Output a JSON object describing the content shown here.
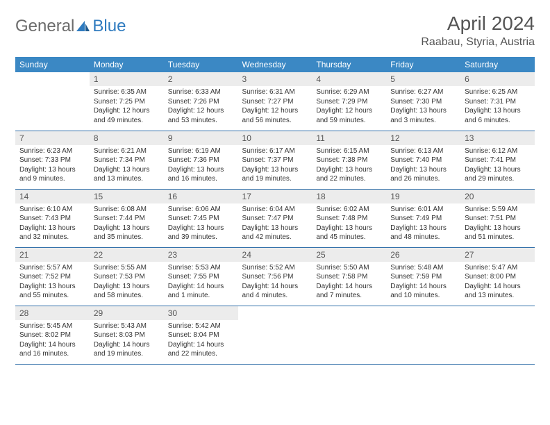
{
  "logo": {
    "text_gray": "General",
    "text_blue": "Blue"
  },
  "title": "April 2024",
  "location": "Raabau, Styria, Austria",
  "colors": {
    "header_bg": "#3b88c4",
    "header_text": "#ffffff",
    "daynum_bg": "#ececec",
    "row_border": "#2f6ea8",
    "logo_gray": "#6b6b6b",
    "logo_blue": "#2f7bbf"
  },
  "weekdays": [
    "Sunday",
    "Monday",
    "Tuesday",
    "Wednesday",
    "Thursday",
    "Friday",
    "Saturday"
  ],
  "weeks": [
    [
      null,
      {
        "n": "1",
        "sr": "Sunrise: 6:35 AM",
        "ss": "Sunset: 7:25 PM",
        "d1": "Daylight: 12 hours",
        "d2": "and 49 minutes."
      },
      {
        "n": "2",
        "sr": "Sunrise: 6:33 AM",
        "ss": "Sunset: 7:26 PM",
        "d1": "Daylight: 12 hours",
        "d2": "and 53 minutes."
      },
      {
        "n": "3",
        "sr": "Sunrise: 6:31 AM",
        "ss": "Sunset: 7:27 PM",
        "d1": "Daylight: 12 hours",
        "d2": "and 56 minutes."
      },
      {
        "n": "4",
        "sr": "Sunrise: 6:29 AM",
        "ss": "Sunset: 7:29 PM",
        "d1": "Daylight: 12 hours",
        "d2": "and 59 minutes."
      },
      {
        "n": "5",
        "sr": "Sunrise: 6:27 AM",
        "ss": "Sunset: 7:30 PM",
        "d1": "Daylight: 13 hours",
        "d2": "and 3 minutes."
      },
      {
        "n": "6",
        "sr": "Sunrise: 6:25 AM",
        "ss": "Sunset: 7:31 PM",
        "d1": "Daylight: 13 hours",
        "d2": "and 6 minutes."
      }
    ],
    [
      {
        "n": "7",
        "sr": "Sunrise: 6:23 AM",
        "ss": "Sunset: 7:33 PM",
        "d1": "Daylight: 13 hours",
        "d2": "and 9 minutes."
      },
      {
        "n": "8",
        "sr": "Sunrise: 6:21 AM",
        "ss": "Sunset: 7:34 PM",
        "d1": "Daylight: 13 hours",
        "d2": "and 13 minutes."
      },
      {
        "n": "9",
        "sr": "Sunrise: 6:19 AM",
        "ss": "Sunset: 7:36 PM",
        "d1": "Daylight: 13 hours",
        "d2": "and 16 minutes."
      },
      {
        "n": "10",
        "sr": "Sunrise: 6:17 AM",
        "ss": "Sunset: 7:37 PM",
        "d1": "Daylight: 13 hours",
        "d2": "and 19 minutes."
      },
      {
        "n": "11",
        "sr": "Sunrise: 6:15 AM",
        "ss": "Sunset: 7:38 PM",
        "d1": "Daylight: 13 hours",
        "d2": "and 22 minutes."
      },
      {
        "n": "12",
        "sr": "Sunrise: 6:13 AM",
        "ss": "Sunset: 7:40 PM",
        "d1": "Daylight: 13 hours",
        "d2": "and 26 minutes."
      },
      {
        "n": "13",
        "sr": "Sunrise: 6:12 AM",
        "ss": "Sunset: 7:41 PM",
        "d1": "Daylight: 13 hours",
        "d2": "and 29 minutes."
      }
    ],
    [
      {
        "n": "14",
        "sr": "Sunrise: 6:10 AM",
        "ss": "Sunset: 7:43 PM",
        "d1": "Daylight: 13 hours",
        "d2": "and 32 minutes."
      },
      {
        "n": "15",
        "sr": "Sunrise: 6:08 AM",
        "ss": "Sunset: 7:44 PM",
        "d1": "Daylight: 13 hours",
        "d2": "and 35 minutes."
      },
      {
        "n": "16",
        "sr": "Sunrise: 6:06 AM",
        "ss": "Sunset: 7:45 PM",
        "d1": "Daylight: 13 hours",
        "d2": "and 39 minutes."
      },
      {
        "n": "17",
        "sr": "Sunrise: 6:04 AM",
        "ss": "Sunset: 7:47 PM",
        "d1": "Daylight: 13 hours",
        "d2": "and 42 minutes."
      },
      {
        "n": "18",
        "sr": "Sunrise: 6:02 AM",
        "ss": "Sunset: 7:48 PM",
        "d1": "Daylight: 13 hours",
        "d2": "and 45 minutes."
      },
      {
        "n": "19",
        "sr": "Sunrise: 6:01 AM",
        "ss": "Sunset: 7:49 PM",
        "d1": "Daylight: 13 hours",
        "d2": "and 48 minutes."
      },
      {
        "n": "20",
        "sr": "Sunrise: 5:59 AM",
        "ss": "Sunset: 7:51 PM",
        "d1": "Daylight: 13 hours",
        "d2": "and 51 minutes."
      }
    ],
    [
      {
        "n": "21",
        "sr": "Sunrise: 5:57 AM",
        "ss": "Sunset: 7:52 PM",
        "d1": "Daylight: 13 hours",
        "d2": "and 55 minutes."
      },
      {
        "n": "22",
        "sr": "Sunrise: 5:55 AM",
        "ss": "Sunset: 7:53 PM",
        "d1": "Daylight: 13 hours",
        "d2": "and 58 minutes."
      },
      {
        "n": "23",
        "sr": "Sunrise: 5:53 AM",
        "ss": "Sunset: 7:55 PM",
        "d1": "Daylight: 14 hours",
        "d2": "and 1 minute."
      },
      {
        "n": "24",
        "sr": "Sunrise: 5:52 AM",
        "ss": "Sunset: 7:56 PM",
        "d1": "Daylight: 14 hours",
        "d2": "and 4 minutes."
      },
      {
        "n": "25",
        "sr": "Sunrise: 5:50 AM",
        "ss": "Sunset: 7:58 PM",
        "d1": "Daylight: 14 hours",
        "d2": "and 7 minutes."
      },
      {
        "n": "26",
        "sr": "Sunrise: 5:48 AM",
        "ss": "Sunset: 7:59 PM",
        "d1": "Daylight: 14 hours",
        "d2": "and 10 minutes."
      },
      {
        "n": "27",
        "sr": "Sunrise: 5:47 AM",
        "ss": "Sunset: 8:00 PM",
        "d1": "Daylight: 14 hours",
        "d2": "and 13 minutes."
      }
    ],
    [
      {
        "n": "28",
        "sr": "Sunrise: 5:45 AM",
        "ss": "Sunset: 8:02 PM",
        "d1": "Daylight: 14 hours",
        "d2": "and 16 minutes."
      },
      {
        "n": "29",
        "sr": "Sunrise: 5:43 AM",
        "ss": "Sunset: 8:03 PM",
        "d1": "Daylight: 14 hours",
        "d2": "and 19 minutes."
      },
      {
        "n": "30",
        "sr": "Sunrise: 5:42 AM",
        "ss": "Sunset: 8:04 PM",
        "d1": "Daylight: 14 hours",
        "d2": "and 22 minutes."
      },
      null,
      null,
      null,
      null
    ]
  ]
}
